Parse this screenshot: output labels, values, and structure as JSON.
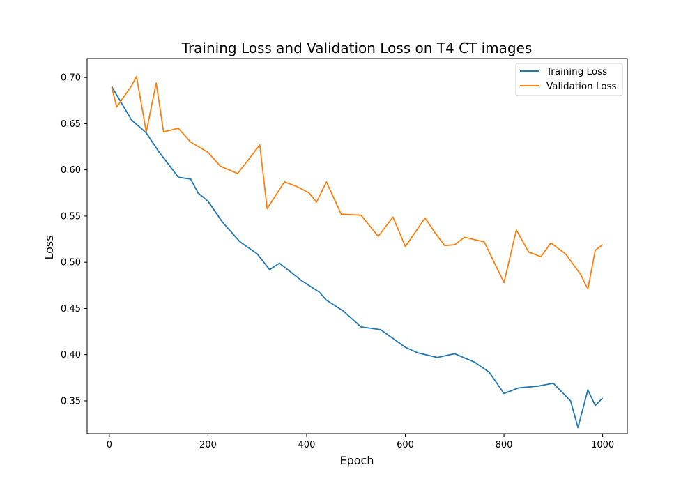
{
  "chart_data": {
    "type": "line",
    "title": "Training Loss and Validation Loss on T4 CT images",
    "xlabel": "Epoch",
    "ylabel": "Loss",
    "xlim": [
      -45,
      1050
    ],
    "ylim": [
      0.3145,
      0.7205
    ],
    "xticks": [
      0,
      200,
      400,
      600,
      800,
      1000
    ],
    "yticks": [
      0.35,
      0.4,
      0.45,
      0.5,
      0.55,
      0.6,
      0.65,
      0.7
    ],
    "xtick_labels": [
      "0",
      "200",
      "400",
      "600",
      "800",
      "1000"
    ],
    "ytick_labels": [
      "0.35",
      "0.40",
      "0.45",
      "0.50",
      "0.55",
      "0.60",
      "0.65",
      "0.70"
    ],
    "grid": false,
    "legend_position": "upper right",
    "series": [
      {
        "name": "Training Loss",
        "color": "#1f77b4",
        "x": [
          5,
          45,
          75,
          100,
          140,
          165,
          180,
          200,
          230,
          265,
          300,
          325,
          345,
          390,
          425,
          440,
          475,
          510,
          550,
          600,
          625,
          665,
          700,
          740,
          770,
          800,
          830,
          870,
          900,
          935,
          950,
          970,
          985,
          1000
        ],
        "y": [
          0.69,
          0.654,
          0.64,
          0.62,
          0.592,
          0.59,
          0.575,
          0.566,
          0.543,
          0.522,
          0.509,
          0.492,
          0.499,
          0.48,
          0.468,
          0.459,
          0.447,
          0.43,
          0.427,
          0.408,
          0.402,
          0.397,
          0.401,
          0.392,
          0.381,
          0.358,
          0.364,
          0.366,
          0.369,
          0.35,
          0.321,
          0.362,
          0.345,
          0.353
        ]
      },
      {
        "name": "Validation Loss",
        "color": "#ff7f0e",
        "x": [
          5,
          15,
          45,
          55,
          75,
          95,
          110,
          140,
          165,
          200,
          225,
          260,
          305,
          320,
          355,
          380,
          405,
          420,
          440,
          470,
          510,
          545,
          575,
          600,
          640,
          660,
          680,
          700,
          720,
          760,
          800,
          825,
          850,
          875,
          895,
          925,
          955,
          970,
          985,
          1000
        ],
        "y": [
          0.689,
          0.668,
          0.691,
          0.701,
          0.641,
          0.694,
          0.641,
          0.645,
          0.63,
          0.619,
          0.604,
          0.596,
          0.627,
          0.558,
          0.587,
          0.582,
          0.575,
          0.565,
          0.587,
          0.552,
          0.551,
          0.528,
          0.549,
          0.517,
          0.548,
          0.532,
          0.518,
          0.519,
          0.527,
          0.522,
          0.478,
          0.535,
          0.511,
          0.506,
          0.521,
          0.509,
          0.487,
          0.471,
          0.513,
          0.519
        ]
      }
    ]
  }
}
